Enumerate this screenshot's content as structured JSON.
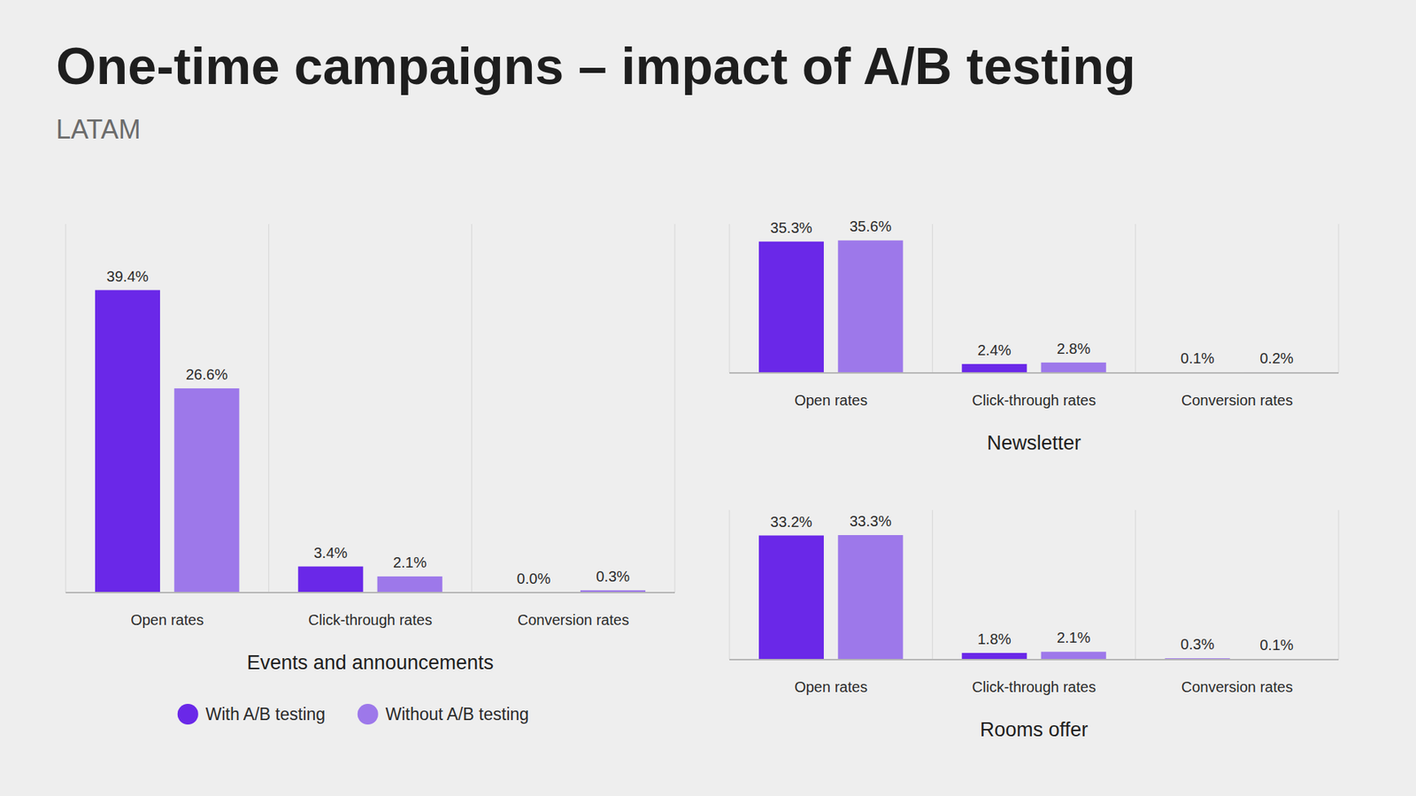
{
  "header": {
    "title": "One-time campaigns – impact of A/B testing",
    "subtitle": "LATAM"
  },
  "chart_data": [
    {
      "type": "bar",
      "title": "Events and announcements",
      "categories": [
        "Open rates",
        "Click-through rates",
        "Conversion rates"
      ],
      "series": [
        {
          "name": "With A/B testing",
          "color": "#6a28e8",
          "values": [
            39.4,
            3.4,
            0.0
          ],
          "value_labels": [
            "39.4%",
            "3.4%",
            "0.0%"
          ]
        },
        {
          "name": "Without A/B testing",
          "color": "#9d78ea",
          "values": [
            26.6,
            2.1,
            0.3
          ],
          "value_labels": [
            "26.6%",
            "2.1%",
            "0.3%"
          ]
        }
      ],
      "ylim": [
        0,
        48
      ],
      "tick_labels": "x",
      "data_labels": true,
      "grid": false,
      "legend": "bottom"
    },
    {
      "type": "bar",
      "title": "Newsletter",
      "categories": [
        "Open rates",
        "Click-through rates",
        "Conversion rates"
      ],
      "series": [
        {
          "color": "#6a28e8",
          "values": [
            35.3,
            2.4,
            0.1
          ],
          "value_labels": [
            "35.3%",
            "2.4%",
            "0.1%"
          ]
        },
        {
          "color": "#9d78ea",
          "values": [
            35.6,
            2.8,
            0.2
          ],
          "value_labels": [
            "35.6%",
            "2.8%",
            "0.2%"
          ]
        }
      ],
      "ylim": [
        0,
        40
      ],
      "tick_labels": "x",
      "data_labels": true,
      "grid": false
    },
    {
      "type": "bar",
      "title": "Rooms offer",
      "categories": [
        "Open rates",
        "Click-through rates",
        "Conversion rates"
      ],
      "series": [
        {
          "color": "#6a28e8",
          "values": [
            33.2,
            1.8,
            0.3
          ],
          "value_labels": [
            "33.2%",
            "1.8%",
            "0.3%"
          ]
        },
        {
          "color": "#9d78ea",
          "values": [
            33.3,
            2.1,
            0.1
          ],
          "value_labels": [
            "33.3%",
            "2.1%",
            "0.1%"
          ]
        }
      ],
      "ylim": [
        0,
        40
      ],
      "tick_labels": "x",
      "data_labels": true,
      "grid": false
    }
  ]
}
